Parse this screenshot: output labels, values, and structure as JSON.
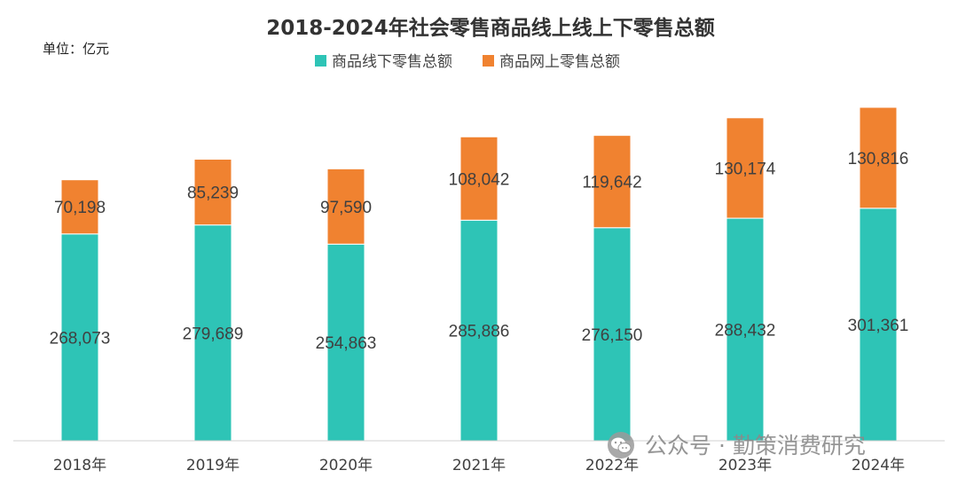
{
  "chart_data": {
    "type": "bar",
    "stacked": true,
    "title": "2018-2024年社会零售商品线上线上下零售总额",
    "unit_label": "单位：亿元",
    "categories": [
      "2018年",
      "2019年",
      "2020年",
      "2021年",
      "2022年",
      "2023年",
      "2024年"
    ],
    "series": [
      {
        "name": "商品线下零售总额",
        "color": "#2ec4b6",
        "values": [
          268073,
          279689,
          254863,
          285886,
          276150,
          288432,
          301361
        ],
        "labels": [
          "268,073",
          "279,689",
          "254,863",
          "285,886",
          "276,150",
          "288,432",
          "301,361"
        ]
      },
      {
        "name": "商品网上零售总额",
        "color": "#f08230",
        "values": [
          70198,
          85239,
          97590,
          108042,
          119642,
          130174,
          130816
        ],
        "labels": [
          "70,198",
          "85,239",
          "97,590",
          "108,042",
          "119,642",
          "130,174",
          "130,816"
        ]
      }
    ],
    "ylim": [
      0,
      450000
    ],
    "grid": false,
    "legend_position": "top-center"
  },
  "watermark": {
    "text": "公众号 · 勤策消费研究",
    "icon": "wechat-icon"
  }
}
